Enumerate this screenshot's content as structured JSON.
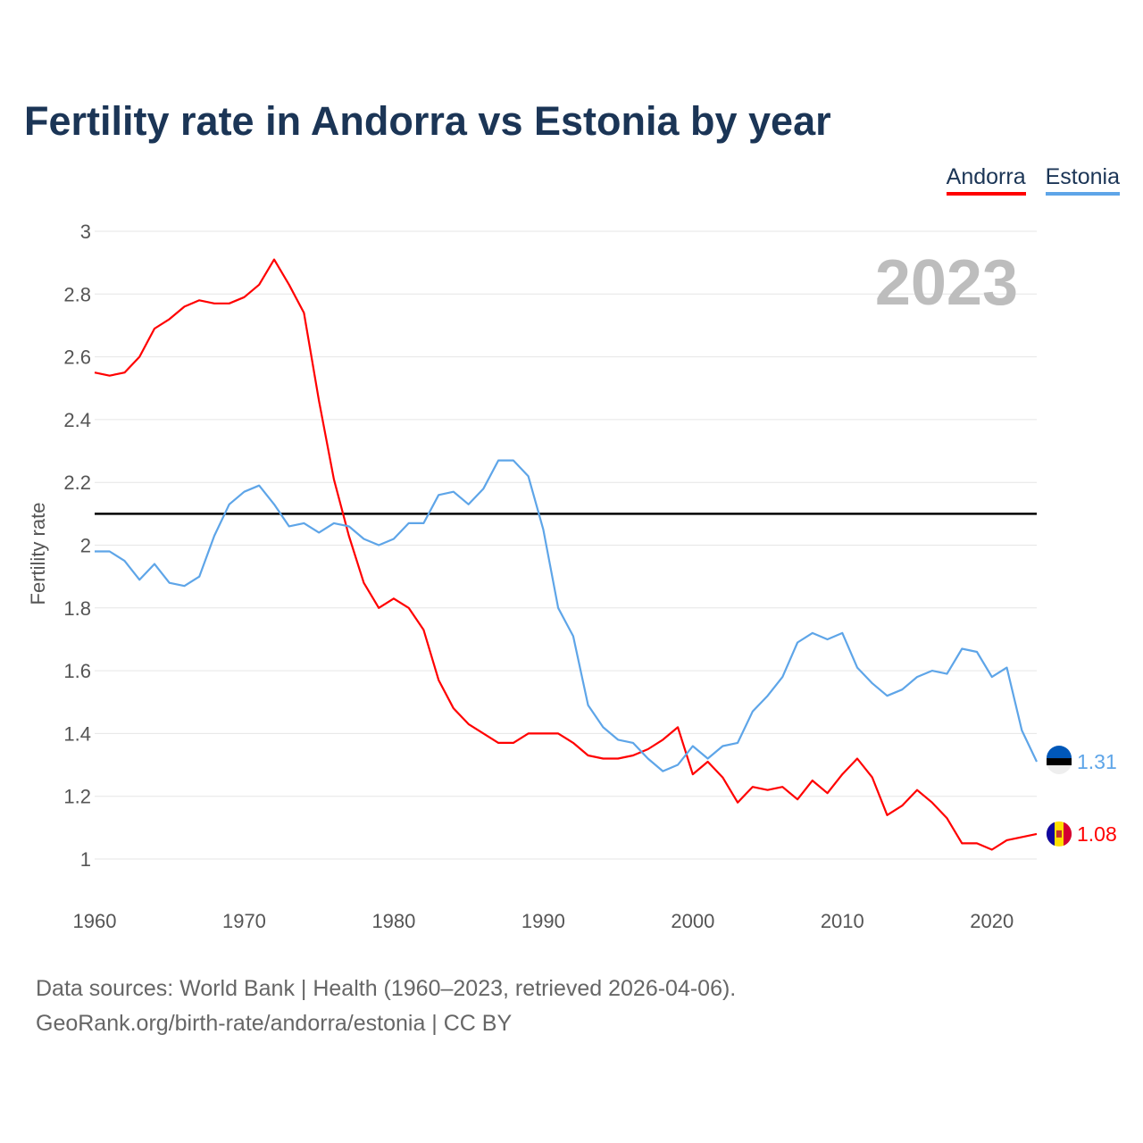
{
  "chart_data": {
    "type": "line",
    "title": "Fertility rate in Andorra vs Estonia by year",
    "xlabel": "",
    "ylabel": "Fertility rate",
    "xlim": [
      1960,
      2023
    ],
    "ylim": [
      1,
      3
    ],
    "x_ticks": [
      "1960",
      "1970",
      "1980",
      "1990",
      "2000",
      "2010",
      "2020"
    ],
    "y_ticks": [
      "1",
      "1.2",
      "1.4",
      "1.6",
      "1.8",
      "2",
      "2.2",
      "2.4",
      "2.6",
      "2.8",
      "3"
    ],
    "grid": true,
    "legend_placement": "top-right",
    "year_label": "2023",
    "reference_line": 2.1,
    "x_start": 1960,
    "series": [
      {
        "name": "Andorra",
        "color": "#ff0000",
        "end_label": "1.08",
        "values": [
          2.55,
          2.54,
          2.55,
          2.6,
          2.69,
          2.72,
          2.76,
          2.78,
          2.77,
          2.77,
          2.79,
          2.83,
          2.91,
          2.83,
          2.74,
          2.46,
          2.21,
          2.03,
          1.88,
          1.8,
          1.83,
          1.8,
          1.73,
          1.57,
          1.48,
          1.43,
          1.4,
          1.37,
          1.37,
          1.4,
          1.4,
          1.4,
          1.37,
          1.33,
          1.32,
          1.32,
          1.33,
          1.35,
          1.38,
          1.42,
          1.27,
          1.31,
          1.26,
          1.18,
          1.23,
          1.22,
          1.23,
          1.19,
          1.25,
          1.21,
          1.27,
          1.32,
          1.26,
          1.14,
          1.17,
          1.22,
          1.18,
          1.13,
          1.05,
          1.05,
          1.03,
          1.06,
          1.07,
          1.08
        ]
      },
      {
        "name": "Estonia",
        "color": "#5ea5e8",
        "end_label": "1.31",
        "values": [
          1.98,
          1.98,
          1.95,
          1.89,
          1.94,
          1.88,
          1.87,
          1.9,
          2.03,
          2.13,
          2.17,
          2.19,
          2.13,
          2.06,
          2.07,
          2.04,
          2.07,
          2.06,
          2.02,
          2.0,
          2.02,
          2.07,
          2.07,
          2.16,
          2.17,
          2.13,
          2.18,
          2.27,
          2.27,
          2.22,
          2.05,
          1.8,
          1.71,
          1.49,
          1.42,
          1.38,
          1.37,
          1.32,
          1.28,
          1.3,
          1.36,
          1.32,
          1.36,
          1.37,
          1.47,
          1.52,
          1.58,
          1.69,
          1.72,
          1.7,
          1.72,
          1.61,
          1.56,
          1.52,
          1.54,
          1.58,
          1.6,
          1.59,
          1.67,
          1.66,
          1.58,
          1.61,
          1.41,
          1.31
        ]
      }
    ]
  },
  "footer": {
    "source": "Data sources: World Bank | Health (1960–2023, retrieved 2026-04-06).",
    "credit": "GeoRank.org/birth-rate/andorra/estonia | CC BY"
  }
}
